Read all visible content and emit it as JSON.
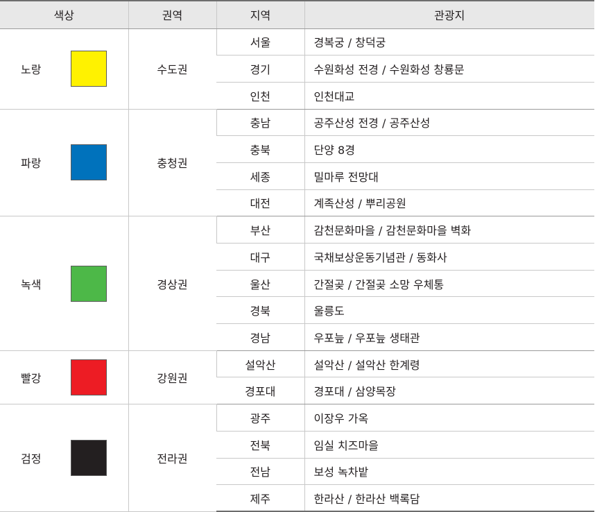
{
  "header": {
    "color": "색상",
    "sphere": "권역",
    "region": "지역",
    "spots": "관광지"
  },
  "groups": [
    {
      "color_name": "노랑",
      "swatch": "#fff200",
      "sphere": "수도권",
      "rows": [
        {
          "region": "서울",
          "spots": "경복궁 / 창덕궁"
        },
        {
          "region": "경기",
          "spots": "수원화성 전경 / 수원화성 창룡문"
        },
        {
          "region": "인천",
          "spots": "인천대교"
        }
      ]
    },
    {
      "color_name": "파랑",
      "swatch": "#0072bc",
      "sphere": "충청권",
      "rows": [
        {
          "region": "충남",
          "spots": "공주산성 전경 / 공주산성"
        },
        {
          "region": "충북",
          "spots": "단양 8경"
        },
        {
          "region": "세종",
          "spots": "밀마루 전망대"
        },
        {
          "region": "대전",
          "spots": "계족산성 / 뿌리공원"
        }
      ]
    },
    {
      "color_name": "녹색",
      "swatch": "#4db848",
      "sphere": "경상권",
      "rows": [
        {
          "region": "부산",
          "spots": "감천문화마을 / 감천문화마을 벽화"
        },
        {
          "region": "대구",
          "spots": "국채보상운동기념관 / 동화사"
        },
        {
          "region": "울산",
          "spots": "간절곶 / 간절곶 소망 우체통"
        },
        {
          "region": "경북",
          "spots": "울릉도"
        },
        {
          "region": "경남",
          "spots": "우포늪 / 우포늪 생태관"
        }
      ]
    },
    {
      "color_name": "빨강",
      "swatch": "#ed1c24",
      "sphere": "강원권",
      "rows": [
        {
          "region": "설악산",
          "spots": "설악산 / 설악산 한계령"
        },
        {
          "region": "경포대",
          "spots": "경포대 / 삼양목장"
        }
      ]
    },
    {
      "color_name": "검정",
      "swatch": "#231f20",
      "sphere": "전라권",
      "rows": [
        {
          "region": "광주",
          "spots": "이장우 가옥"
        },
        {
          "region": "전북",
          "spots": "임실 치즈마을"
        },
        {
          "region": "전남",
          "spots": "보성 녹차밭"
        },
        {
          "region": "제주",
          "spots": "한라산 / 한라산 백록담"
        }
      ]
    }
  ]
}
